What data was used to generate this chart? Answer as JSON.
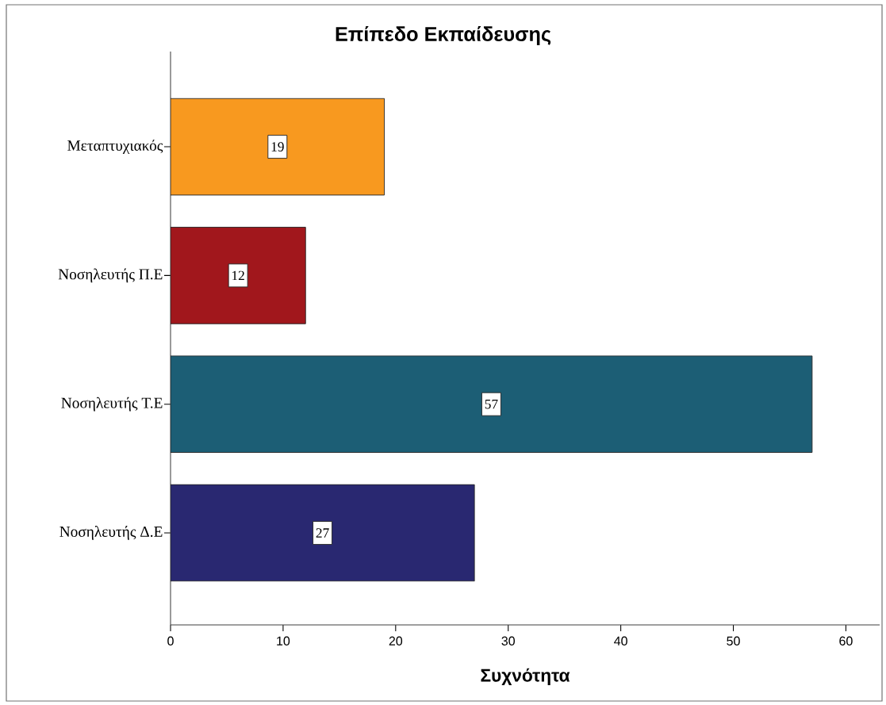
{
  "chart_data": {
    "type": "bar",
    "orientation": "horizontal",
    "title": "Επίπεδο Εκπαίδευσης",
    "xlabel": "Συχνότητα",
    "categories": [
      "Μεταπτυχιακός",
      "Νοσηλευτής Π.Ε",
      "Νοσηλευτής Τ.Ε",
      "Νοσηλευτής Δ.Ε"
    ],
    "values": [
      19,
      12,
      57,
      27
    ],
    "colors": [
      "#f8991f",
      "#a1171c",
      "#1c5e75",
      "#292871"
    ],
    "xlim": [
      0,
      63
    ],
    "xticks": [
      0,
      10,
      20,
      30,
      40,
      50,
      60
    ],
    "data_labels": true
  }
}
